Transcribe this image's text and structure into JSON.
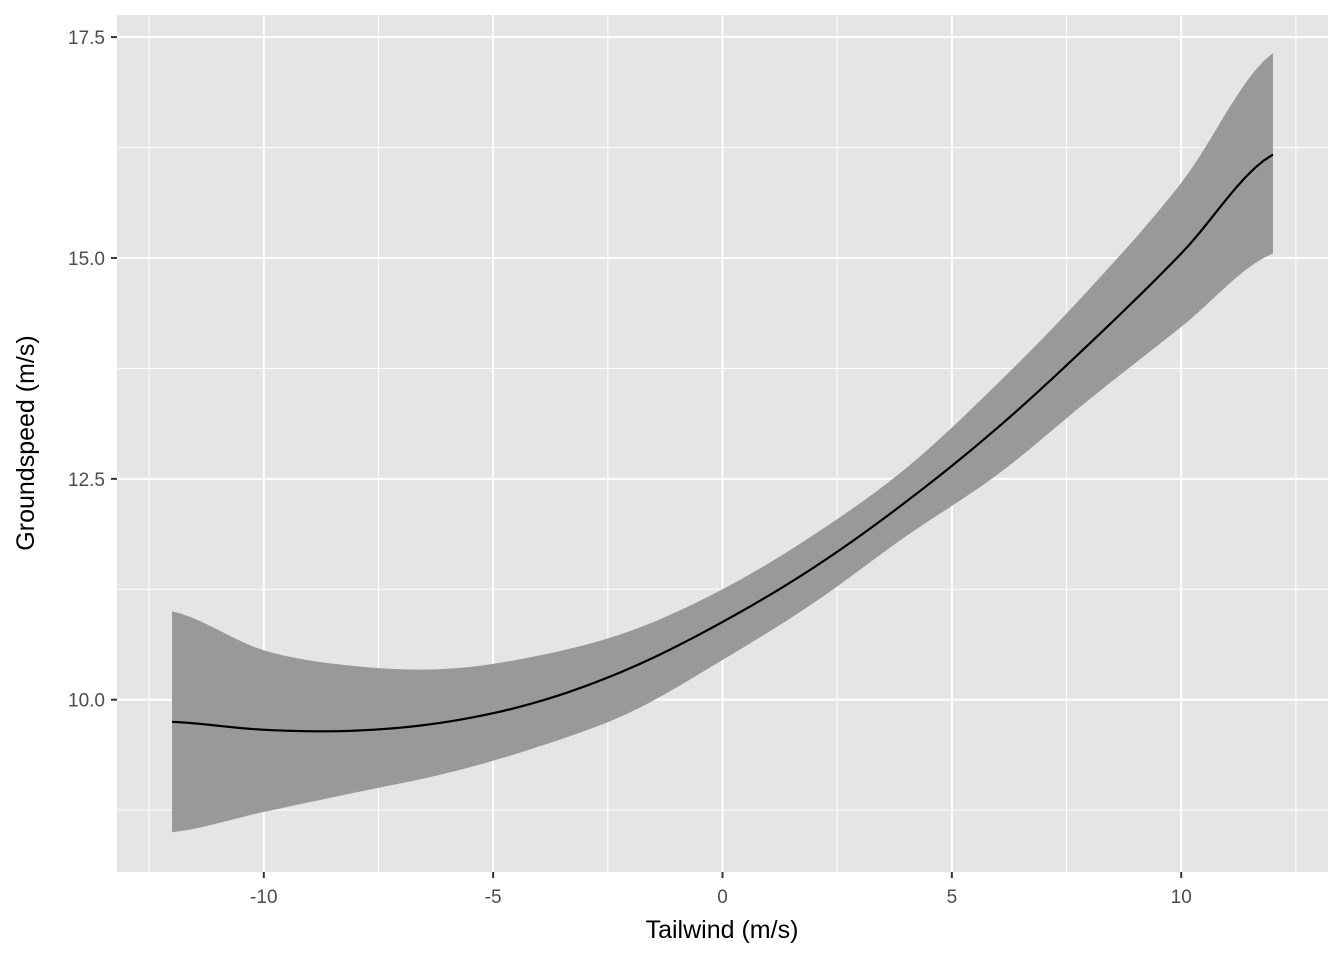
{
  "chart_data": {
    "type": "line",
    "title": "",
    "xlabel": "Tailwind (m/s)",
    "ylabel": "Groundspeed (m/s)",
    "xlim": [
      -13.2,
      13.2
    ],
    "ylim": [
      8.05,
      17.75
    ],
    "x_ticks": [
      -10,
      -5,
      0,
      5,
      10
    ],
    "x_tick_labels": [
      "-10",
      "-5",
      "0",
      "5",
      "10"
    ],
    "x_minor_ticks": [
      -12.5,
      -7.5,
      -2.5,
      2.5,
      7.5,
      12.5
    ],
    "y_ticks": [
      10.0,
      12.5,
      15.0,
      17.5
    ],
    "y_tick_labels": [
      "10.0",
      "12.5",
      "15.0",
      "17.5"
    ],
    "y_minor_ticks": [
      8.75,
      11.25,
      13.75,
      16.25
    ],
    "grid": true,
    "colors": {
      "panel_background": "#e5e5e5",
      "grid": "#ffffff",
      "ribbon": "#999999",
      "line": "#000000",
      "tick": "#333333"
    },
    "series": [
      {
        "x": [
          -12,
          -10,
          -8,
          -6,
          -4,
          -2,
          0,
          2,
          4,
          6,
          8,
          10,
          12
        ],
        "y": [
          9.75,
          9.66,
          9.65,
          9.75,
          9.98,
          10.36,
          10.88,
          11.5,
          12.24,
          13.08,
          14.03,
          15.05,
          16.17
        ]
      }
    ],
    "ribbon": {
      "x": [
        -12,
        -10,
        -8,
        -6,
        -4,
        -2,
        0,
        2,
        4,
        6,
        8,
        10,
        12
      ],
      "upper": [
        11.0,
        10.56,
        10.38,
        10.35,
        10.5,
        10.78,
        11.25,
        11.87,
        12.62,
        13.58,
        14.65,
        15.85,
        17.32
      ],
      "lower": [
        8.5,
        8.73,
        8.95,
        9.17,
        9.47,
        9.86,
        10.45,
        11.1,
        11.85,
        12.55,
        13.4,
        14.22,
        15.05
      ]
    }
  }
}
